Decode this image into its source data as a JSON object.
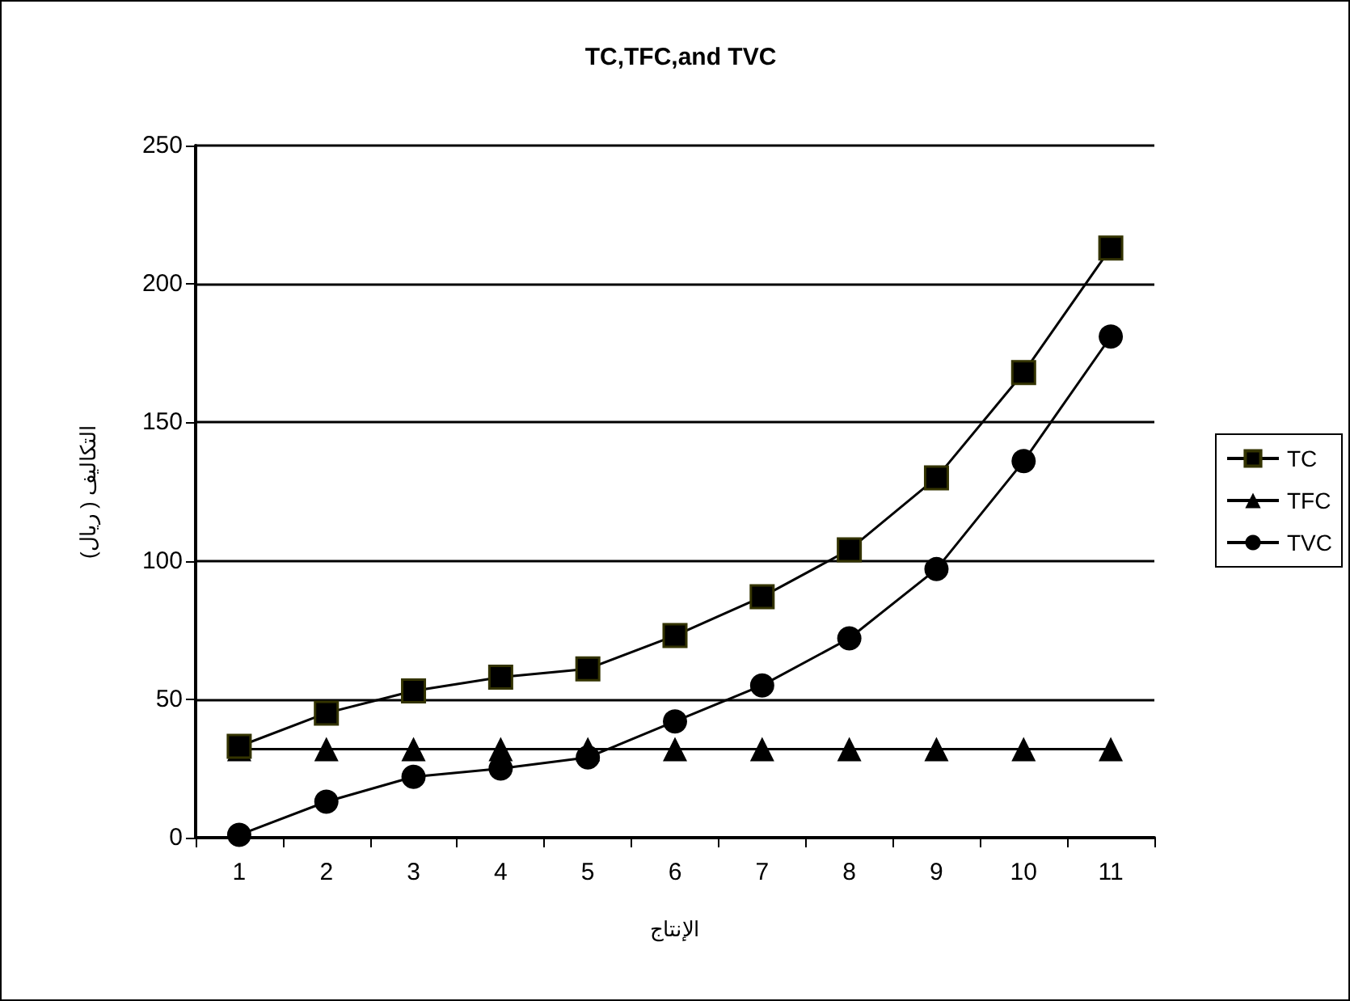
{
  "chart_data": {
    "type": "line",
    "title": "TC,TFC,and TVC",
    "xlabel": "الإنتاج",
    "ylabel": "التكاليف ( ريال)",
    "categories": [
      "1",
      "2",
      "3",
      "4",
      "5",
      "6",
      "7",
      "8",
      "9",
      "10",
      "11"
    ],
    "series": [
      {
        "name": "TC",
        "color": "#000000",
        "marker": "square",
        "values": [
          33,
          45,
          53,
          58,
          61,
          73,
          87,
          104,
          130,
          168,
          213
        ]
      },
      {
        "name": "TFC",
        "color": "#000000",
        "marker": "triangle",
        "values": [
          32,
          32,
          32,
          32,
          32,
          32,
          32,
          32,
          32,
          32,
          32
        ]
      },
      {
        "name": "TVC",
        "color": "#000000",
        "marker": "circle",
        "values": [
          1,
          13,
          22,
          25,
          29,
          42,
          55,
          72,
          97,
          136,
          181
        ]
      }
    ],
    "ylim": [
      0,
      250
    ],
    "yticks": [
      0,
      50,
      100,
      150,
      200,
      250
    ],
    "grid": "y",
    "legend": "right"
  }
}
